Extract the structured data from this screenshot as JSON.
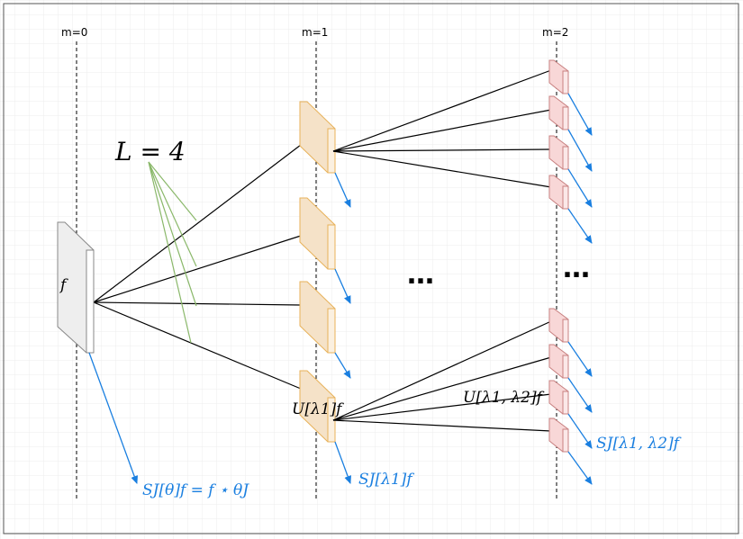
{
  "levels": [
    {
      "label": "m=0"
    },
    {
      "label": "m=1"
    },
    {
      "label": "m=2"
    }
  ],
  "labels": {
    "L": "L = 4",
    "f": "f",
    "U1": "U[λ1]f",
    "U2": "U[λ1, λ2]f",
    "S0": "SJ[θ]f = f ⋆ θJ",
    "S1": "SJ[λ1]f",
    "S2": "SJ[λ1, λ2]f",
    "ellipsis1": "…",
    "ellipsis2": "…"
  },
  "colors": {
    "input_fill": "#eeeeee",
    "input_stroke": "#888888",
    "level1_fill": "#f5e2c8",
    "level1_stroke": "#e8b25a",
    "level2_fill": "#f8d7d7",
    "level2_stroke": "#c88080",
    "arrow": "#1a7fe0",
    "filter_line": "#8ab86a",
    "border": "#555555",
    "grid": "#e6e6e6"
  }
}
